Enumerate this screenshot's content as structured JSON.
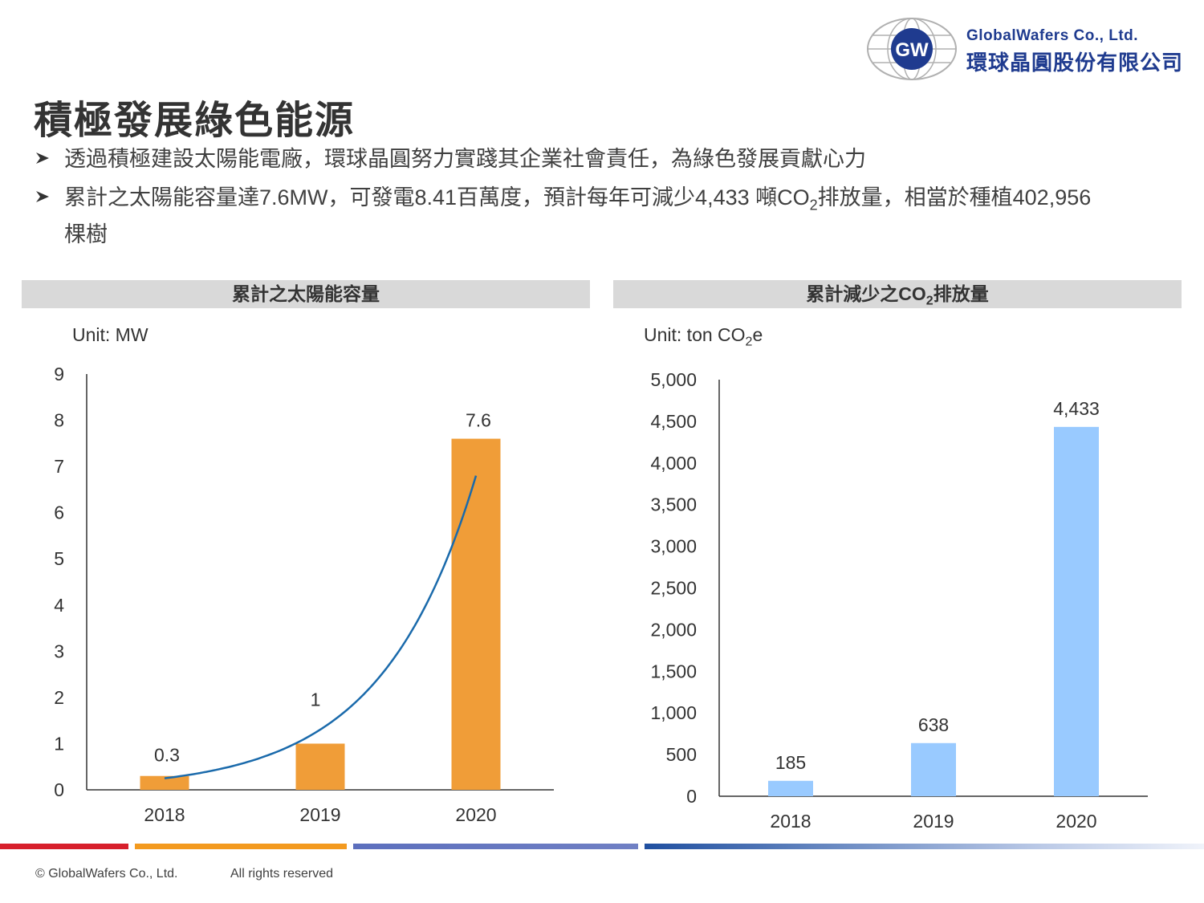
{
  "logo": {
    "mark": "GW",
    "company_en": "GlobalWafers Co., Ltd.",
    "company_zh": "環球晶圓股份有限公司"
  },
  "title": "積極發展綠色能源",
  "bullets": [
    {
      "icon": "arrow-bullet-icon",
      "text": "透過積極建設太陽能電廠，環球晶圓努力實踐其企業社會責任，為綠色發展貢獻心力"
    },
    {
      "icon": "arrow-bullet-icon",
      "text_pre": "累計之太陽能容量達7.6MW，可發電8.41百萬度，預計每年可減少4,433 噸CO",
      "text_sub": "2",
      "text_post": "排放量，相當於種植402,956",
      "text_line2": "棵樹"
    }
  ],
  "panels": {
    "left": {
      "title": "累計之太陽能容量",
      "unit": "Unit: MW"
    },
    "right": {
      "title_pre": "累計減少之CO",
      "title_sub": "2",
      "title_post": "排放量",
      "unit_pre": "Unit: ton CO",
      "unit_sub": "2",
      "unit_post": "e"
    }
  },
  "chart_data": [
    {
      "type": "bar",
      "title": "累計之太陽能容量",
      "unit": "Unit: MW",
      "categories": [
        "2018",
        "2019",
        "2020"
      ],
      "values": [
        0.3,
        1,
        7.6
      ],
      "value_labels": [
        "0.3",
        "1",
        "7.6"
      ],
      "ylim": [
        0,
        9
      ],
      "yticks": [
        "0",
        "1",
        "2",
        "3",
        "4",
        "5",
        "6",
        "7",
        "8",
        "9"
      ],
      "bar_color": "#f09d38",
      "trendline": {
        "type": "exponential",
        "color": "#1a6aab",
        "points": [
          0.25,
          1.1,
          6.8
        ]
      }
    },
    {
      "type": "bar",
      "title": "累計減少之CO2排放量",
      "unit": "Unit: ton CO2e",
      "categories": [
        "2018",
        "2019",
        "2020"
      ],
      "values": [
        185,
        638,
        4433
      ],
      "value_labels": [
        "185",
        "638",
        "4,433"
      ],
      "ylim": [
        0,
        5000
      ],
      "yticks": [
        "0",
        "500",
        "1,000",
        "1,500",
        "2,000",
        "2,500",
        "3,000",
        "3,500",
        "4,000",
        "4,500",
        "5,000"
      ],
      "bar_color": "#99caff"
    }
  ],
  "footer": {
    "copyright": "© GlobalWafers Co., Ltd.",
    "rights": "All rights reserved"
  }
}
